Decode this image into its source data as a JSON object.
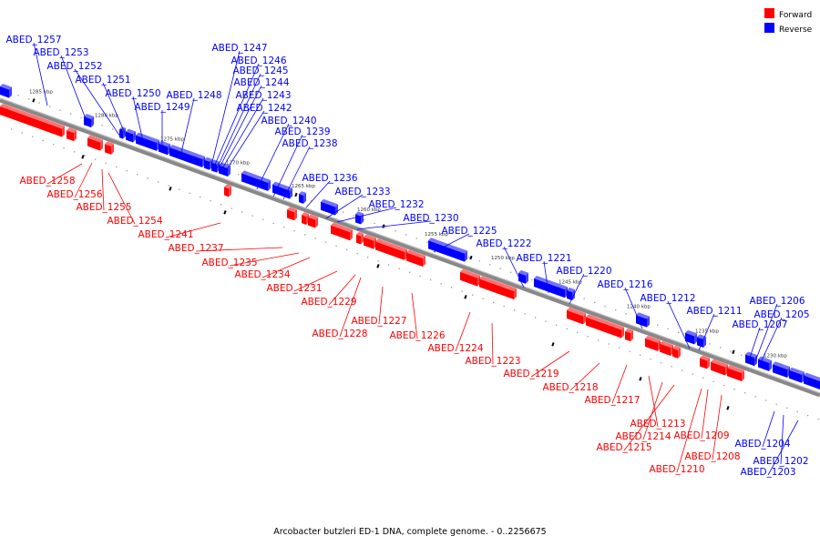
{
  "caption": "Arcobacter butzleri ED-1 DNA, complete genome. - 0..2256675",
  "legend": [
    {
      "label": "Forward",
      "color": "#ff0000"
    },
    {
      "label": "Reverse",
      "color": "#0000ff"
    }
  ],
  "colors": {
    "forward": "#ff0000",
    "reverse": "#0000ff",
    "axis": "#888888"
  },
  "ticks": [
    "1285 kbp",
    "1280 kbp",
    "1275 kbp",
    "1270 kbp",
    "1265 kbp",
    "1260 kbp",
    "1255 kbp",
    "1250 kbp",
    "1245 kbp",
    "1240 kbp",
    "1235 kbp",
    "1230 kbp"
  ],
  "genes_reverse": [
    "ABED_1257",
    "ABED_1253",
    "ABED_1252",
    "ABED_1251",
    "ABED_1250",
    "ABED_1249",
    "ABED_1248",
    "ABED_1247",
    "ABED_1246",
    "ABED_1245",
    "ABED_1244",
    "ABED_1243",
    "ABED_1242",
    "ABED_1240",
    "ABED_1239",
    "ABED_1238",
    "ABED_1236",
    "ABED_1233",
    "ABED_1232",
    "ABED_1230",
    "ABED_1225",
    "ABED_1222",
    "ABED_1221",
    "ABED_1220",
    "ABED_1216",
    "ABED_1212",
    "ABED_1211",
    "ABED_1206",
    "ABED_1205",
    "ABED_1207",
    "ABED_1204",
    "ABED_1202",
    "ABED_1203"
  ],
  "genes_forward": [
    "ABED_1258",
    "ABED_1256",
    "ABED_1255",
    "ABED_1254",
    "ABED_1241",
    "ABED_1237",
    "ABED_1235",
    "ABED_1234",
    "ABED_1231",
    "ABED_1229",
    "ABED_1227",
    "ABED_1228",
    "ABED_1226",
    "ABED_1224",
    "ABED_1223",
    "ABED_1219",
    "ABED_1218",
    "ABED_1217",
    "ABED_1213",
    "ABED_1214",
    "ABED_1215",
    "ABED_1209",
    "ABED_1208",
    "ABED_1210"
  ]
}
